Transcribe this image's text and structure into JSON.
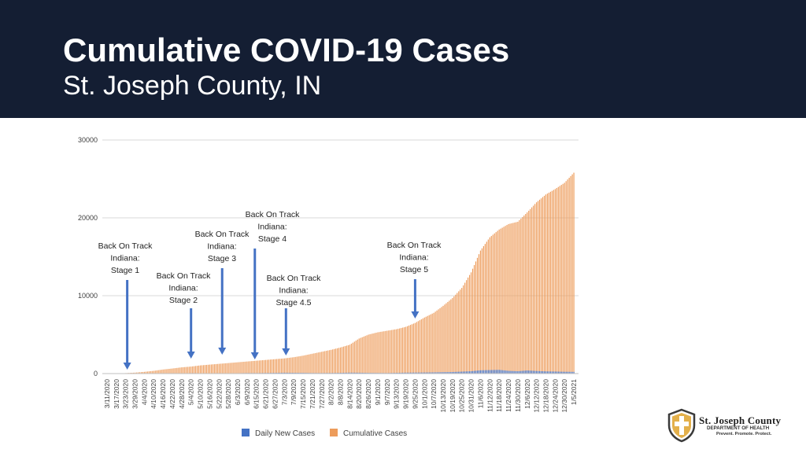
{
  "header": {
    "title": "Cumulative COVID-19 Cases",
    "subtitle": "St. Joseph County, IN"
  },
  "colors": {
    "header_bg": "#141e33",
    "daily": "#4472c4",
    "cumulative": "#ed9c5b",
    "arrow": "#4472c4",
    "grid": "#d9d9d9"
  },
  "chart_data": {
    "type": "bar",
    "title": "",
    "xlabel": "",
    "ylabel": "",
    "ylim": [
      0,
      30000
    ],
    "y_ticks": [
      "0",
      "10000",
      "20000",
      "30000"
    ],
    "grid": true,
    "legend_position": "bottom",
    "x_ticks": [
      "3/11/2020",
      "3/17/2020",
      "3/23/2020",
      "3/29/2020",
      "4/4/2020",
      "4/10/2020",
      "4/16/2020",
      "4/22/2020",
      "4/28/2020",
      "5/4/2020",
      "5/10/2020",
      "5/16/2020",
      "5/22/2020",
      "5/28/2020",
      "6/3/2020",
      "6/9/2020",
      "6/15/2020",
      "6/21/2020",
      "6/27/2020",
      "7/3/2020",
      "7/9/2020",
      "7/15/2020",
      "7/21/2020",
      "7/27/2020",
      "8/2/2020",
      "8/8/2020",
      "8/14/2020",
      "8/20/2020",
      "8/26/2020",
      "9/1/2020",
      "9/7/2020",
      "9/13/2020",
      "9/19/2020",
      "9/25/2020",
      "10/1/2020",
      "10/7/2020",
      "10/13/2020",
      "10/19/2020",
      "10/25/2020",
      "10/31/2020",
      "11/6/2020",
      "11/12/2020",
      "11/18/2020",
      "11/24/2020",
      "11/30/2020",
      "12/6/2020",
      "12/12/2020",
      "12/18/2020",
      "12/24/2020",
      "12/30/2020",
      "1/5/2021"
    ],
    "series": [
      {
        "name": "Daily New Cases",
        "values": [
          0,
          5,
          20,
          12,
          25,
          30,
          45,
          40,
          35,
          60,
          50,
          45,
          55,
          40,
          50,
          70,
          65,
          80,
          90,
          110,
          100,
          95,
          75,
          70,
          80,
          95,
          120,
          110,
          90,
          80,
          70,
          95,
          120,
          130,
          140,
          155,
          180,
          200,
          250,
          300,
          420,
          450,
          480,
          350,
          300,
          400,
          330,
          280,
          260,
          230,
          220
        ]
      },
      {
        "name": "Cumulative Cases",
        "values": [
          1,
          10,
          60,
          120,
          220,
          350,
          520,
          650,
          800,
          900,
          1050,
          1150,
          1250,
          1350,
          1450,
          1550,
          1650,
          1750,
          1850,
          1950,
          2100,
          2300,
          2550,
          2800,
          3050,
          3350,
          3700,
          4500,
          5000,
          5300,
          5500,
          5700,
          6000,
          6500,
          7200,
          7800,
          8700,
          9700,
          11000,
          13000,
          15800,
          17500,
          18500,
          19200,
          19500,
          20700,
          22000,
          23000,
          23700,
          24500,
          25800
        ]
      }
    ],
    "annotations": [
      {
        "lines": [
          "Back On Track",
          "Indiana:",
          "Stage 1"
        ],
        "date": "3/24/2020"
      },
      {
        "lines": [
          "Back On Track",
          "Indiana:",
          "Stage 2"
        ],
        "date": "5/4/2020"
      },
      {
        "lines": [
          "Back On Track",
          "Indiana:",
          "Stage 3"
        ],
        "date": "5/24/2020"
      },
      {
        "lines": [
          "Back On Track",
          "Indiana:",
          "Stage 4"
        ],
        "date": "6/14/2020"
      },
      {
        "lines": [
          "Back On Track",
          "Indiana:",
          "Stage 4.5"
        ],
        "date": "7/4/2020"
      },
      {
        "lines": [
          "Back On Track",
          "Indiana:",
          "Stage 5"
        ],
        "date": "9/25/2020"
      }
    ]
  },
  "logo": {
    "title": "St. Joseph County",
    "department": "DEPARTMENT OF HEALTH",
    "tagline": "Prevent. Promote. Protect."
  }
}
